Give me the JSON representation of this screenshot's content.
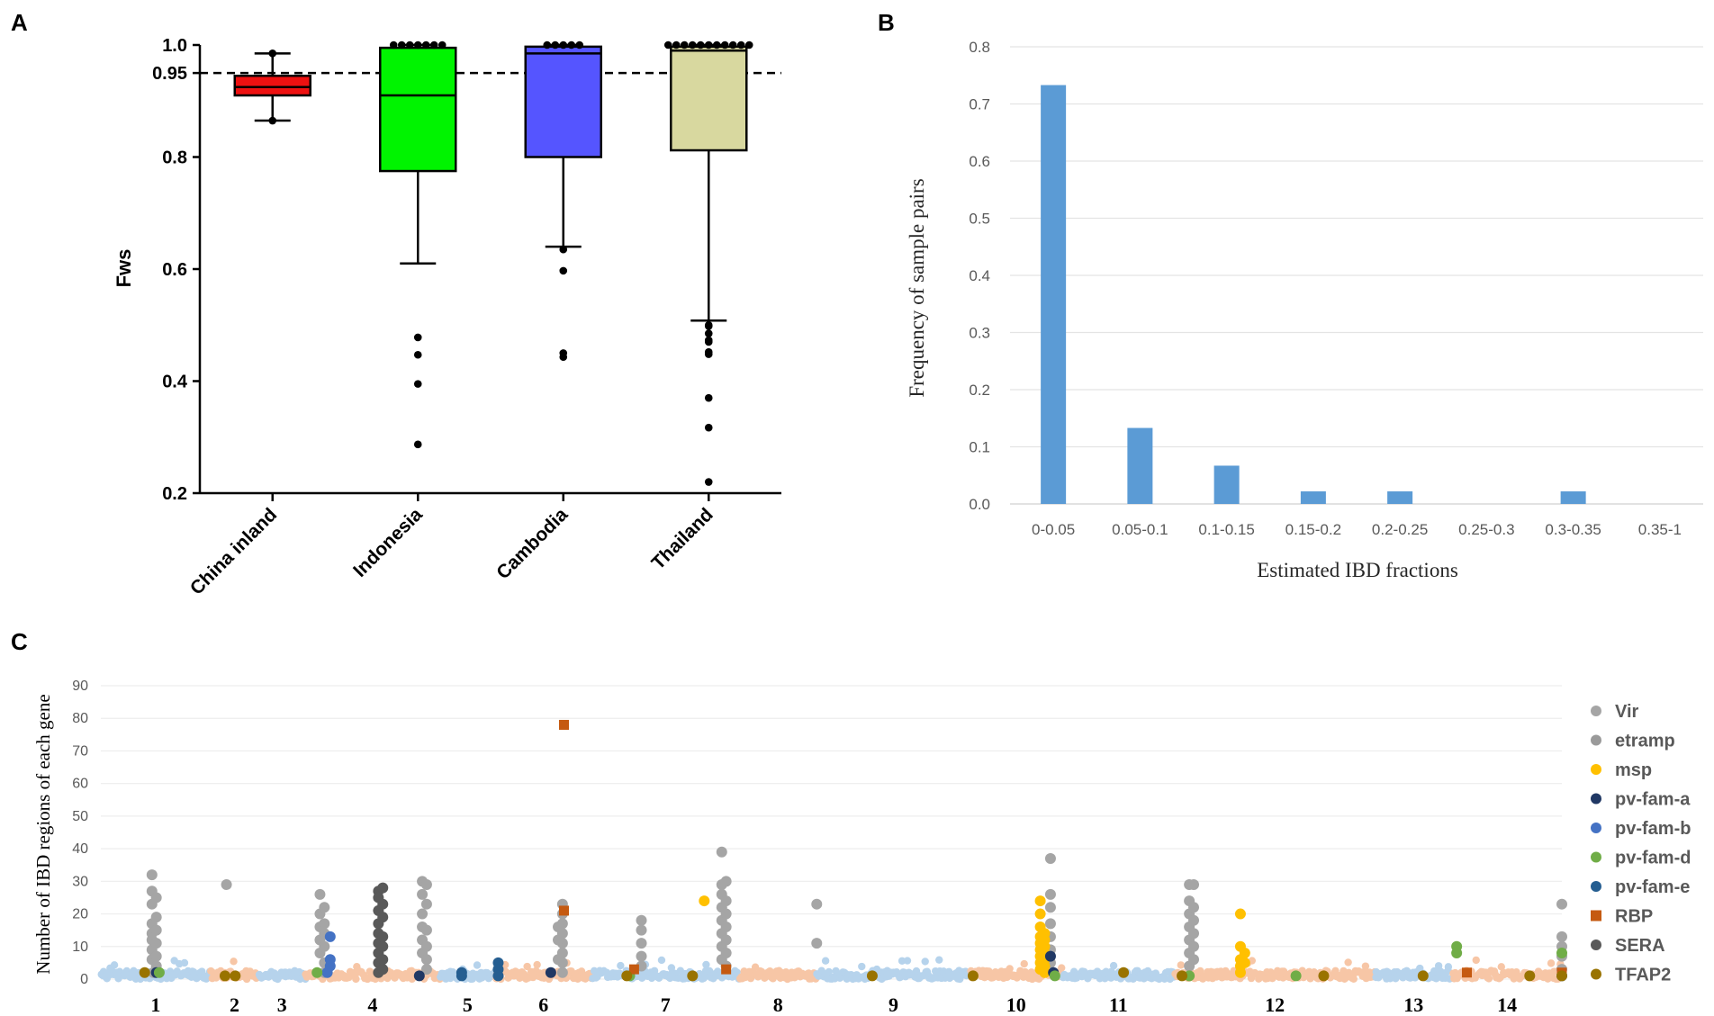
{
  "panels": {
    "a": "A",
    "b": "B",
    "c": "C"
  },
  "chart_data": [
    {
      "type": "box",
      "id": "A",
      "ylabel": "Fws",
      "ylim": [
        0.2,
        1.0
      ],
      "yticks": [
        {
          "value": 0.2,
          "label": "0.2"
        },
        {
          "value": 0.4,
          "label": "0.4"
        },
        {
          "value": 0.6,
          "label": "0.6"
        },
        {
          "value": 0.8,
          "label": "0.8"
        },
        {
          "value": 0.95,
          "label": "0.95"
        },
        {
          "value": 1.0,
          "label": "1.0"
        }
      ],
      "reference_line": 0.95,
      "groups": [
        {
          "name": "China inland",
          "color": "#ee1111",
          "whisker_low": 0.865,
          "q1": 0.91,
          "median": 0.925,
          "q3": 0.945,
          "whisker_high": 0.985,
          "outliers": [
            0.865,
            0.985
          ]
        },
        {
          "name": "Indonesia",
          "color": "#00f400",
          "whisker_low": 0.61,
          "q1": 0.775,
          "median": 0.91,
          "q3": 0.995,
          "whisker_high": 1.0,
          "outliers": [
            0.478,
            0.447,
            0.395,
            0.287,
            1.0,
            1.0,
            1.0,
            1.0,
            1.0,
            1.0,
            1.0
          ]
        },
        {
          "name": "Cambodia",
          "color": "#5555ff",
          "whisker_low": 0.64,
          "q1": 0.8,
          "median": 0.985,
          "q3": 0.997,
          "whisker_high": 1.0,
          "outliers": [
            0.635,
            0.597,
            0.45,
            0.443,
            1.0,
            1.0,
            1.0,
            1.0,
            1.0
          ]
        },
        {
          "name": "Thailand",
          "color": "#d8d89f",
          "whisker_low": 0.508,
          "q1": 0.812,
          "median": 0.99,
          "q3": 0.997,
          "whisker_high": 1.0,
          "outliers": [
            0.498,
            0.5,
            0.485,
            0.473,
            0.47,
            0.448,
            0.452,
            0.37,
            0.317,
            0.22,
            1.0,
            1.0,
            1.0,
            1.0,
            1.0,
            1.0,
            1.0,
            1.0,
            1.0,
            1.0,
            1.0
          ]
        }
      ]
    },
    {
      "type": "bar",
      "id": "B",
      "xlabel": "Estimated IBD fractions",
      "ylabel": "Frequency of sample pairs",
      "ylim": [
        0,
        0.8
      ],
      "yticks": [
        {
          "value": 0.0,
          "label": "0.0"
        },
        {
          "value": 0.1,
          "label": "0.1"
        },
        {
          "value": 0.2,
          "label": "0.2"
        },
        {
          "value": 0.3,
          "label": "0.3"
        },
        {
          "value": 0.4,
          "label": "0.4"
        },
        {
          "value": 0.5,
          "label": "0.5"
        },
        {
          "value": 0.6,
          "label": "0.6"
        },
        {
          "value": 0.7,
          "label": "0.7"
        },
        {
          "value": 0.8,
          "label": "0.8"
        }
      ],
      "color": "#5b9bd5",
      "categories": [
        "0-0.05",
        "0.05-0.1",
        "0.1-0.15",
        "0.15-0.2",
        "0.2-0.25",
        "0.25-0.3",
        "0.3-0.35",
        "0.35-1"
      ],
      "values": [
        0.733,
        0.133,
        0.067,
        0.022,
        0.022,
        0,
        0.022,
        0
      ]
    },
    {
      "type": "scatter",
      "id": "C",
      "ylabel": "Number of IBD regions of each gene",
      "ylim": [
        0,
        90
      ],
      "yticks": [
        {
          "value": 0,
          "label": "0"
        },
        {
          "value": 10,
          "label": "10"
        },
        {
          "value": 20,
          "label": "20"
        },
        {
          "value": 30,
          "label": "30"
        },
        {
          "value": 40,
          "label": "40"
        },
        {
          "value": 50,
          "label": "50"
        },
        {
          "value": 60,
          "label": "60"
        },
        {
          "value": 70,
          "label": "70"
        },
        {
          "value": 80,
          "label": "80"
        },
        {
          "value": 90,
          "label": "90"
        }
      ],
      "xlim": [
        0,
        1000
      ],
      "chromosome_shades": [
        "#b6d3ec",
        "#f7c6a6"
      ],
      "chromosomes": [
        {
          "label": "1",
          "start": 0,
          "end": 75
        },
        {
          "label": "2",
          "start": 75,
          "end": 108
        },
        {
          "label": "3",
          "start": 108,
          "end": 140
        },
        {
          "label": "4",
          "start": 140,
          "end": 232
        },
        {
          "label": "5",
          "start": 232,
          "end": 270
        },
        {
          "label": "6",
          "start": 270,
          "end": 336
        },
        {
          "label": "7",
          "start": 336,
          "end": 437
        },
        {
          "label": "8",
          "start": 437,
          "end": 490
        },
        {
          "label": "9",
          "start": 490,
          "end": 595
        },
        {
          "label": "10",
          "start": 595,
          "end": 658
        },
        {
          "label": "11",
          "start": 658,
          "end": 735
        },
        {
          "label": "12",
          "start": 735,
          "end": 872
        },
        {
          "label": "13",
          "start": 872,
          "end": 925
        },
        {
          "label": "14",
          "start": 925,
          "end": 1000
        }
      ],
      "legend": [
        {
          "label": "Vir",
          "color": "#a5a5a5",
          "shape": "circle"
        },
        {
          "label": "etramp",
          "color": "#9a9a9a",
          "shape": "circle"
        },
        {
          "label": "msp",
          "color": "#ffc000",
          "shape": "circle"
        },
        {
          "label": "pv-fam-a",
          "color": "#203864",
          "shape": "circle"
        },
        {
          "label": "pv-fam-b",
          "color": "#4472c4",
          "shape": "circle"
        },
        {
          "label": "pv-fam-d",
          "color": "#70ad47",
          "shape": "circle"
        },
        {
          "label": "pv-fam-e",
          "color": "#255e91",
          "shape": "circle"
        },
        {
          "label": "RBP",
          "color": "#c55a11",
          "shape": "square"
        },
        {
          "label": "SERA",
          "color": "#595959",
          "shape": "circle"
        },
        {
          "label": "TFAP2",
          "color": "#997300",
          "shape": "circle"
        }
      ],
      "series": [
        {
          "name": "Vir",
          "points": [
            [
              35,
              32
            ],
            [
              35,
              27
            ],
            [
              35,
              23
            ],
            [
              35,
              17
            ],
            [
              35,
              14
            ],
            [
              35,
              12
            ],
            [
              35,
              9
            ],
            [
              35,
              6
            ],
            [
              38,
              25
            ],
            [
              38,
              19
            ],
            [
              38,
              15
            ],
            [
              38,
              11
            ],
            [
              38,
              7
            ],
            [
              38,
              4
            ],
            [
              36,
              2
            ],
            [
              86,
              29
            ],
            [
              150,
              26
            ],
            [
              150,
              20
            ],
            [
              150,
              16
            ],
            [
              150,
              12
            ],
            [
              150,
              8
            ],
            [
              153,
              22
            ],
            [
              153,
              17
            ],
            [
              153,
              14
            ],
            [
              153,
              10
            ],
            [
              153,
              5
            ],
            [
              153,
              2
            ],
            [
              220,
              30
            ],
            [
              220,
              26
            ],
            [
              220,
              20
            ],
            [
              220,
              16
            ],
            [
              220,
              12
            ],
            [
              220,
              8
            ],
            [
              223,
              29
            ],
            [
              223,
              23
            ],
            [
              223,
              15
            ],
            [
              223,
              10
            ],
            [
              223,
              6
            ],
            [
              223,
              3
            ],
            [
              316,
              23
            ],
            [
              316,
              20
            ],
            [
              316,
              17
            ],
            [
              316,
              14
            ],
            [
              316,
              11
            ],
            [
              316,
              8
            ],
            [
              316,
              5
            ],
            [
              316,
              2
            ],
            [
              313,
              16
            ],
            [
              313,
              12
            ],
            [
              313,
              6
            ],
            [
              370,
              18
            ],
            [
              370,
              15
            ],
            [
              370,
              11
            ],
            [
              370,
              7
            ],
            [
              370,
              4
            ],
            [
              425,
              39
            ],
            [
              425,
              29
            ],
            [
              425,
              26
            ],
            [
              425,
              22
            ],
            [
              425,
              18
            ],
            [
              425,
              14
            ],
            [
              425,
              10
            ],
            [
              425,
              6
            ],
            [
              428,
              30
            ],
            [
              428,
              24
            ],
            [
              428,
              20
            ],
            [
              428,
              16
            ],
            [
              428,
              12
            ],
            [
              428,
              8
            ],
            [
              428,
              4
            ],
            [
              490,
              23
            ],
            [
              490,
              11
            ],
            [
              650,
              37
            ],
            [
              650,
              26
            ],
            [
              650,
              22
            ],
            [
              650,
              17
            ],
            [
              650,
              13
            ],
            [
              650,
              9
            ],
            [
              650,
              5
            ],
            [
              745,
              29
            ],
            [
              745,
              24
            ],
            [
              745,
              20
            ],
            [
              745,
              16
            ],
            [
              745,
              12
            ],
            [
              745,
              8
            ],
            [
              745,
              4
            ],
            [
              748,
              29
            ],
            [
              748,
              22
            ],
            [
              748,
              18
            ],
            [
              748,
              14
            ],
            [
              748,
              10
            ],
            [
              748,
              6
            ],
            [
              1000,
              23
            ],
            [
              1000,
              13
            ],
            [
              1000,
              10
            ],
            [
              1000,
              7
            ],
            [
              1000,
              3
            ]
          ]
        },
        {
          "name": "msp",
          "points": [
            [
              413,
              24
            ],
            [
              643,
              24
            ],
            [
              643,
              20
            ],
            [
              643,
              16
            ],
            [
              643,
              13
            ],
            [
              643,
              11
            ],
            [
              643,
              9
            ],
            [
              643,
              7
            ],
            [
              643,
              5
            ],
            [
              643,
              3
            ],
            [
              646,
              14
            ],
            [
              646,
              12
            ],
            [
              646,
              10
            ],
            [
              646,
              8
            ],
            [
              646,
              6
            ],
            [
              646,
              4
            ],
            [
              646,
              2
            ],
            [
              780,
              20
            ],
            [
              780,
              10
            ],
            [
              780,
              6
            ],
            [
              780,
              4
            ],
            [
              780,
              2
            ],
            [
              783,
              8
            ],
            [
              783,
              5
            ]
          ]
        },
        {
          "name": "pv-fam-a",
          "points": [
            [
              38,
              2
            ],
            [
              218,
              1
            ],
            [
              308,
              2
            ],
            [
              650,
              7
            ],
            [
              652,
              2
            ]
          ]
        },
        {
          "name": "pv-fam-b",
          "points": [
            [
              157,
              13
            ],
            [
              157,
              6
            ],
            [
              157,
              4
            ],
            [
              155,
              2
            ]
          ]
        },
        {
          "name": "pv-fam-d",
          "points": [
            [
              40,
              2
            ],
            [
              148,
              2
            ],
            [
              362,
              1
            ],
            [
              653,
              1
            ],
            [
              745,
              1
            ],
            [
              818,
              1
            ],
            [
              928,
              10
            ],
            [
              928,
              8
            ],
            [
              1000,
              8
            ]
          ]
        },
        {
          "name": "pv-fam-e",
          "points": [
            [
              247,
              2
            ],
            [
              247,
              1
            ],
            [
              272,
              5
            ],
            [
              272,
              3
            ],
            [
              272,
              1
            ],
            [
              1000,
              1
            ]
          ]
        },
        {
          "name": "RBP",
          "points": [
            [
              317,
              78
            ],
            [
              317,
              21
            ],
            [
              365,
              3
            ],
            [
              428,
              3
            ],
            [
              935,
              2
            ],
            [
              1000,
              2
            ]
          ]
        },
        {
          "name": "SERA",
          "points": [
            [
              190,
              27
            ],
            [
              190,
              25
            ],
            [
              190,
              21
            ],
            [
              190,
              17
            ],
            [
              190,
              14
            ],
            [
              190,
              11
            ],
            [
              190,
              8
            ],
            [
              190,
              5
            ],
            [
              190,
              2
            ],
            [
              193,
              28
            ],
            [
              193,
              23
            ],
            [
              193,
              19
            ],
            [
              193,
              13
            ],
            [
              193,
              10
            ],
            [
              193,
              6
            ],
            [
              193,
              3
            ]
          ]
        },
        {
          "name": "TFAP2",
          "points": [
            [
              30,
              2
            ],
            [
              85,
              1
            ],
            [
              92,
              1
            ],
            [
              360,
              1
            ],
            [
              405,
              1
            ],
            [
              528,
              1
            ],
            [
              597,
              1
            ],
            [
              700,
              2
            ],
            [
              740,
              1
            ],
            [
              837,
              1
            ],
            [
              905,
              1
            ],
            [
              978,
              1
            ],
            [
              1000,
              1
            ]
          ]
        }
      ]
    }
  ]
}
